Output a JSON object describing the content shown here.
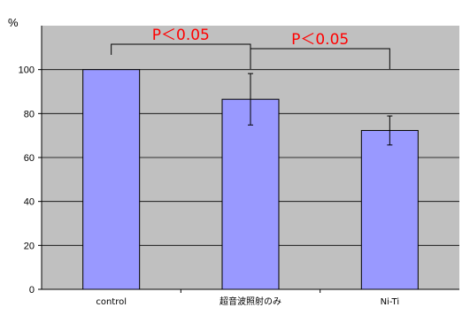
{
  "chart_data": {
    "type": "bar",
    "ylabel": "%",
    "ylim": [
      0,
      120
    ],
    "yticks": [
      0,
      20,
      40,
      60,
      80,
      100
    ],
    "grid": true,
    "categories": [
      "control",
      "超音波照射のみ",
      "Ni-Ti"
    ],
    "values": [
      100,
      86.5,
      72.3
    ],
    "error": [
      0,
      11.7,
      6.6
    ],
    "annotations": [
      {
        "text": "P＜0.05",
        "from": 0,
        "to": 1
      },
      {
        "text": "P＜0.05",
        "from": 1,
        "to": 2
      }
    ],
    "colors": {
      "bar": "#9999ff",
      "bar_edge": "#000000",
      "plot_bg": "#c0c0c0",
      "grid": "#000000",
      "sig_text": "#ff0000"
    }
  }
}
